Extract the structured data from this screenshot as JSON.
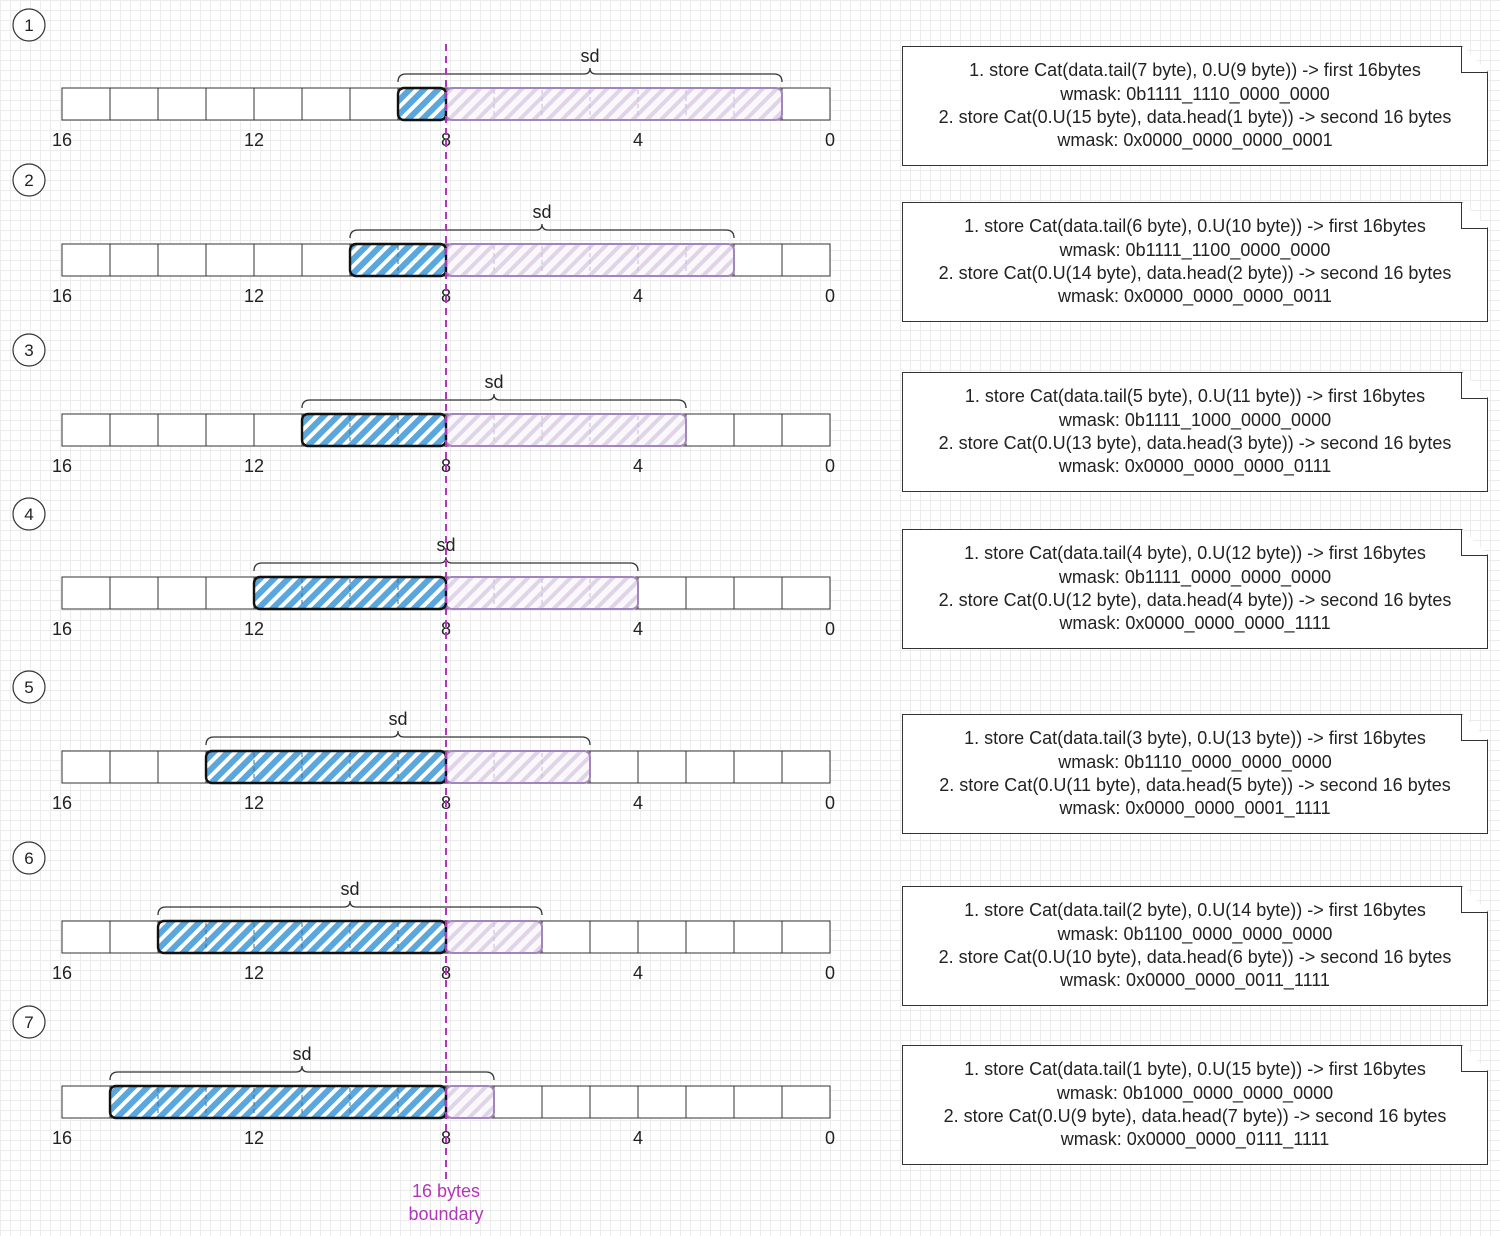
{
  "colors": {
    "high_fill": "#5aa7de",
    "low_fill": "#e6dced",
    "low_border": "#a385bd",
    "boundary": "#b237b8"
  },
  "boundary_label": [
    "16 bytes",
    "boundary"
  ],
  "brace_label": "sd",
  "axis_ticks": [
    "16",
    "12",
    "8",
    "4",
    "0"
  ],
  "cases": [
    {
      "number": "1",
      "high_bytes": 1,
      "low_bytes": 7,
      "note": [
        "1. store Cat(data.tail(7 byte), 0.U(9 byte)) -> first 16bytes",
        "wmask: 0b1111_1110_0000_0000",
        "2. store Cat(0.U(15 byte), data.head(1 byte)) -> second 16 bytes",
        "wmask: 0x0000_0000_0000_0001"
      ]
    },
    {
      "number": "2",
      "high_bytes": 2,
      "low_bytes": 6,
      "note": [
        "1. store Cat(data.tail(6 byte), 0.U(10 byte)) -> first 16bytes",
        "wmask: 0b1111_1100_0000_0000",
        "2. store Cat(0.U(14 byte), data.head(2 byte)) -> second 16 bytes",
        "wmask: 0x0000_0000_0000_0011"
      ]
    },
    {
      "number": "3",
      "high_bytes": 3,
      "low_bytes": 5,
      "note": [
        "1. store Cat(data.tail(5 byte), 0.U(11 byte)) -> first 16bytes",
        "wmask: 0b1111_1000_0000_0000",
        "2. store Cat(0.U(13 byte), data.head(3 byte)) -> second 16 bytes",
        "wmask: 0x0000_0000_0000_0111"
      ]
    },
    {
      "number": "4",
      "high_bytes": 4,
      "low_bytes": 4,
      "note": [
        "1. store Cat(data.tail(4 byte), 0.U(12 byte)) -> first 16bytes",
        "wmask: 0b1111_0000_0000_0000",
        "2. store Cat(0.U(12 byte), data.head(4 byte)) -> second 16 bytes",
        "wmask: 0x0000_0000_0000_1111"
      ]
    },
    {
      "number": "5",
      "high_bytes": 5,
      "low_bytes": 3,
      "note": [
        "1. store Cat(data.tail(3 byte), 0.U(13 byte)) -> first 16bytes",
        "wmask: 0b1110_0000_0000_0000",
        "2. store Cat(0.U(11 byte), data.head(5 byte)) -> second 16 bytes",
        "wmask: 0x0000_0000_0001_1111"
      ]
    },
    {
      "number": "6",
      "high_bytes": 6,
      "low_bytes": 2,
      "note": [
        "1. store Cat(data.tail(2 byte), 0.U(14 byte)) -> first 16bytes",
        "wmask: 0b1100_0000_0000_0000",
        "2. store Cat(0.U(10 byte), data.head(6 byte)) -> second 16 bytes",
        "wmask: 0x0000_0000_0011_1111"
      ]
    },
    {
      "number": "7",
      "high_bytes": 7,
      "low_bytes": 1,
      "note": [
        "1. store Cat(data.tail(1 byte), 0.U(15 byte)) -> first 16bytes",
        "wmask: 0b1000_0000_0000_0000",
        "2. store Cat(0.U(9 byte), data.head(7 byte)) -> second 16 bytes",
        "wmask: 0x0000_0000_0111_1111"
      ]
    }
  ]
}
